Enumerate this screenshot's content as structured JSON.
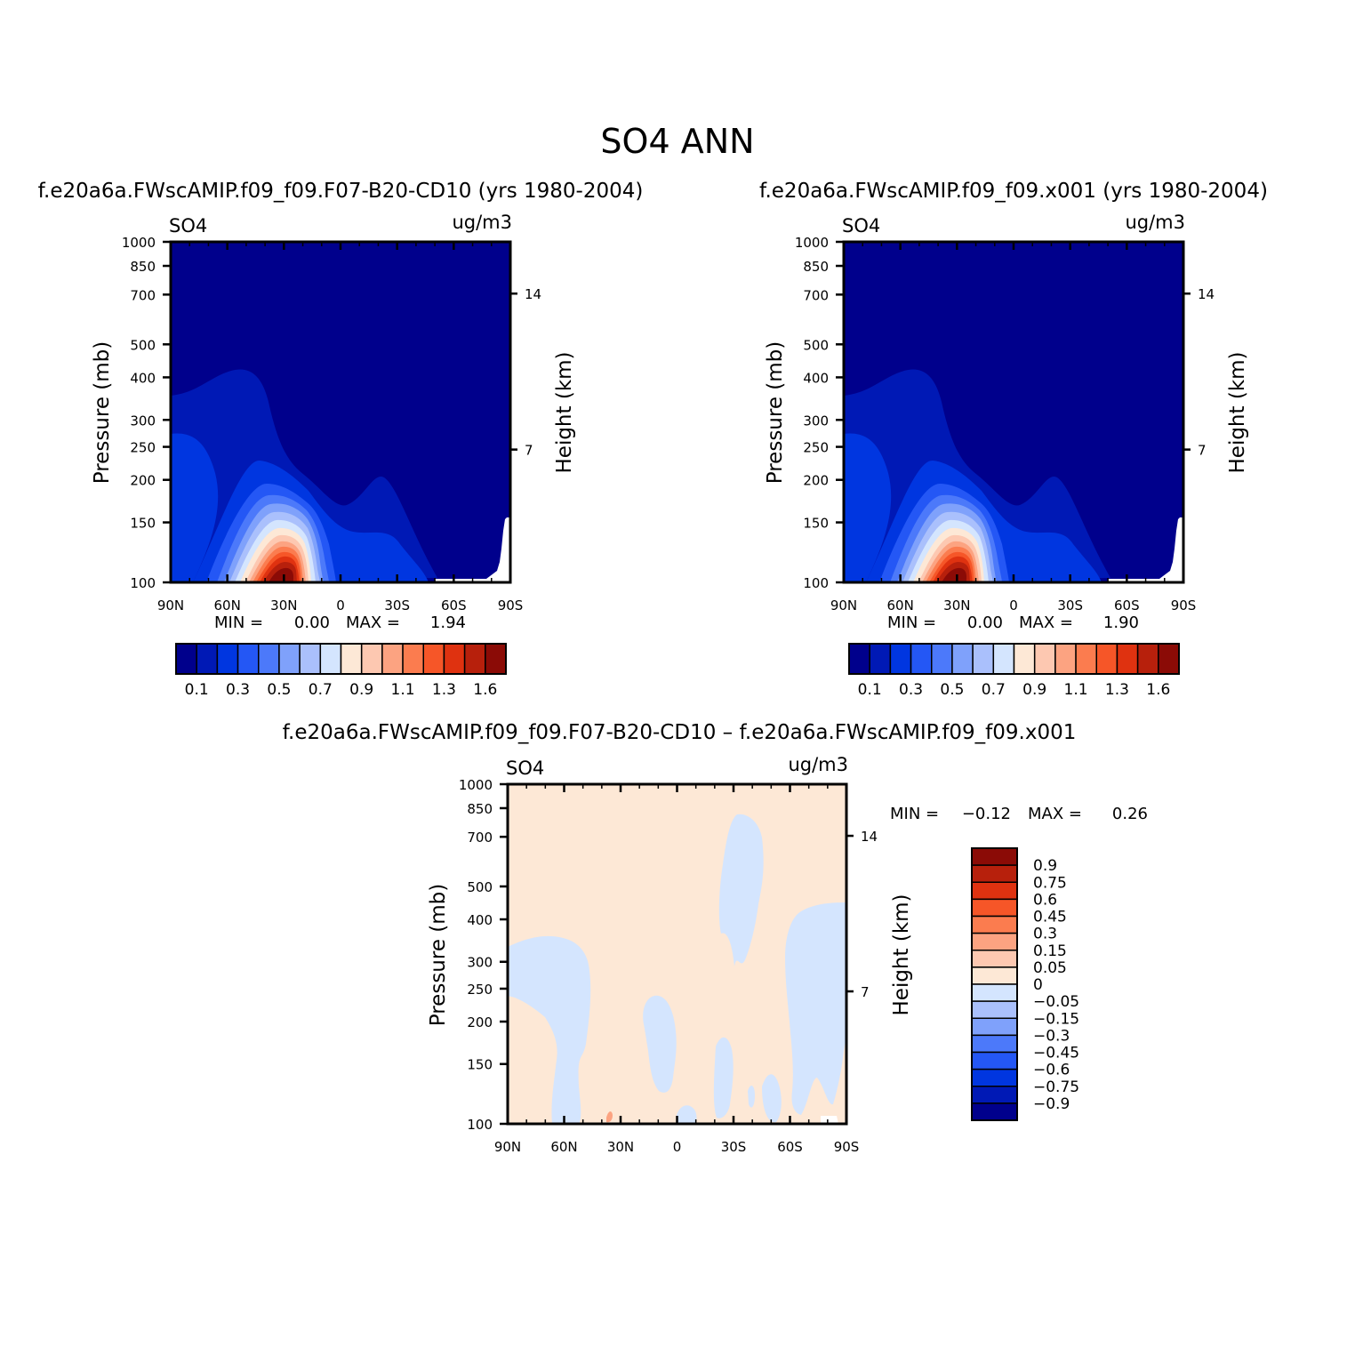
{
  "page": {
    "title": "SO4 ANN"
  },
  "colors": {
    "seq": [
      "#00008c",
      "#0019b5",
      "#0036e0",
      "#2457f5",
      "#4c79fa",
      "#7fa1fb",
      "#aac0fc",
      "#d4e5fe",
      "#fde8d6",
      "#fdc8b1",
      "#fca381",
      "#fb7c4f",
      "#f65628",
      "#df3210",
      "#b7200c",
      "#8b0b06"
    ],
    "diff": [
      "#00008c",
      "#0019b5",
      "#0036e0",
      "#2457f5",
      "#4c79fa",
      "#7fa1fb",
      "#aac0fc",
      "#d4e5fe",
      "#fde8d6",
      "#fdc8b1",
      "#fca381",
      "#fb7c4f",
      "#f65628",
      "#df3210",
      "#b7200c",
      "#8b0b06"
    ]
  },
  "chart_data": [
    {
      "type": "heatmap",
      "title": "f.e20a6a.FWscAMIP.f09_f09.F07-B20-CD10 (yrs 1980-2004)",
      "left_label": "SO4",
      "units": "ug/m3",
      "xlabel": "",
      "ylabel": "Pressure (mb)",
      "ylabel_right": "Height (km)",
      "x_ticklabels": [
        "90N",
        "60N",
        "30N",
        "0",
        "30S",
        "60S",
        "90S"
      ],
      "y_ticklabels": [
        "100",
        "150",
        "200",
        "250",
        "300",
        "400",
        "500",
        "700",
        "850",
        "1000"
      ],
      "y_right_ticklabels": [
        "14",
        "7"
      ],
      "ylim": [
        1000,
        100
      ],
      "min_label": "MIN =",
      "min_value": "0.00",
      "max_label": "MAX =",
      "max_value": "1.94",
      "colorbar_labels": [
        "0.1",
        "0.3",
        "0.5",
        "0.7",
        "0.9",
        "1.1",
        "1.3",
        "1.6"
      ],
      "contour_levels": [
        0.1,
        0.2,
        0.3,
        0.4,
        0.5,
        0.6,
        0.7,
        0.8,
        0.9,
        1.0,
        1.1,
        1.2,
        1.3,
        1.4,
        1.6
      ]
    },
    {
      "type": "heatmap",
      "title": "f.e20a6a.FWscAMIP.f09_f09.x001 (yrs 1980-2004)",
      "left_label": "SO4",
      "units": "ug/m3",
      "xlabel": "",
      "ylabel": "Pressure (mb)",
      "ylabel_right": "Height (km)",
      "x_ticklabels": [
        "90N",
        "60N",
        "30N",
        "0",
        "30S",
        "60S",
        "90S"
      ],
      "y_ticklabels": [
        "100",
        "150",
        "200",
        "250",
        "300",
        "400",
        "500",
        "700",
        "850",
        "1000"
      ],
      "y_right_ticklabels": [
        "14",
        "7"
      ],
      "ylim": [
        1000,
        100
      ],
      "min_label": "MIN =",
      "min_value": "0.00",
      "max_label": "MAX =",
      "max_value": "1.90",
      "colorbar_labels": [
        "0.1",
        "0.3",
        "0.5",
        "0.7",
        "0.9",
        "1.1",
        "1.3",
        "1.6"
      ],
      "contour_levels": [
        0.1,
        0.2,
        0.3,
        0.4,
        0.5,
        0.6,
        0.7,
        0.8,
        0.9,
        1.0,
        1.1,
        1.2,
        1.3,
        1.4,
        1.6
      ]
    },
    {
      "type": "heatmap",
      "title": "f.e20a6a.FWscAMIP.f09_f09.F07-B20-CD10 – f.e20a6a.FWscAMIP.f09_f09.x001",
      "left_label": "SO4",
      "units": "ug/m3",
      "xlabel": "",
      "ylabel": "Pressure (mb)",
      "ylabel_right": "Height (km)",
      "x_ticklabels": [
        "90N",
        "60N",
        "30N",
        "0",
        "30S",
        "60S",
        "90S"
      ],
      "y_ticklabels": [
        "100",
        "150",
        "200",
        "250",
        "300",
        "400",
        "500",
        "700",
        "850",
        "1000"
      ],
      "y_right_ticklabels": [
        "14",
        "7"
      ],
      "ylim": [
        1000,
        100
      ],
      "min_label": "MIN =",
      "min_value": "−0.12",
      "max_label": "MAX =",
      "max_value": "0.26",
      "colorbar_labels": [
        "0.9",
        "0.75",
        "0.6",
        "0.45",
        "0.3",
        "0.15",
        "0.05",
        "0",
        "−0.05",
        "−0.15",
        "−0.3",
        "−0.45",
        "−0.6",
        "−0.75",
        "−0.9"
      ]
    }
  ]
}
